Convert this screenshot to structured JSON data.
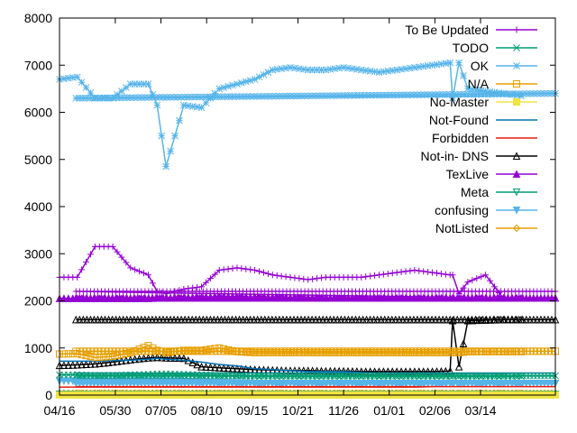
{
  "chart_data": {
    "type": "line",
    "title": "",
    "xlabel": "",
    "ylabel": "",
    "ylim": [
      0,
      8000
    ],
    "xlim": [
      "04/16",
      "05/12"
    ],
    "grid": false,
    "legend_position": "top-right",
    "x_ticks": [
      "04/16",
      "05/30",
      "07/05",
      "08/10",
      "09/15",
      "10/21",
      "11/26",
      "01/01",
      "02/06",
      "03/14"
    ],
    "y_ticks": [
      0,
      1000,
      2000,
      3000,
      4000,
      5000,
      6000,
      7000,
      8000
    ],
    "x_dates": [
      "04/16",
      "04/30",
      "05/14",
      "05/28",
      "06/11",
      "06/25",
      "07/02",
      "07/09",
      "07/23",
      "08/06",
      "08/20",
      "09/03",
      "09/17",
      "10/01",
      "10/15",
      "10/29",
      "11/12",
      "11/26",
      "12/10",
      "12/24",
      "01/07",
      "01/21",
      "02/04",
      "02/18",
      "02/20",
      "02/25",
      "03/04",
      "03/18",
      "04/01",
      "04/15",
      "04/29",
      "05/12"
    ],
    "series": [
      {
        "name": "To Be Updated",
        "color": "#9400d3",
        "marker": "plus",
        "values": [
          2500,
          2500,
          3150,
          3150,
          2700,
          2550,
          2200,
          2150,
          2250,
          2300,
          2650,
          2700,
          2650,
          2550,
          2500,
          2450,
          2500,
          2500,
          2500,
          2550,
          2600,
          2650,
          2600,
          2550,
          2550,
          2150,
          2400,
          2550,
          2050,
          2050,
          2200,
          2200
        ]
      },
      {
        "name": "TODO",
        "color": "#009e73",
        "marker": "cross",
        "values": [
          430,
          430,
          420,
          420,
          430,
          440,
          450,
          450,
          440,
          430,
          420,
          410,
          400,
          400,
          400,
          400,
          400,
          400,
          400,
          400,
          400,
          400,
          400,
          400,
          400,
          400,
          400,
          400,
          400,
          400,
          410,
          410
        ]
      },
      {
        "name": "OK",
        "color": "#56b4e9",
        "marker": "star",
        "values": [
          6700,
          6750,
          6300,
          6300,
          6600,
          6600,
          6150,
          4850,
          6150,
          6100,
          6500,
          6600,
          6700,
          6900,
          6950,
          6900,
          6900,
          6950,
          6900,
          6850,
          6900,
          6950,
          7000,
          7050,
          6300,
          7050,
          6500,
          6450,
          6400,
          6350,
          6300,
          6400
        ]
      },
      {
        "name": "N/A",
        "color": "#e69f00",
        "marker": "square",
        "values": [
          870,
          880,
          800,
          820,
          900,
          1050,
          950,
          900,
          950,
          950,
          1000,
          920,
          900,
          900,
          900,
          900,
          900,
          900,
          900,
          900,
          900,
          900,
          900,
          900,
          900,
          900,
          920,
          920,
          920,
          920,
          930,
          930
        ]
      },
      {
        "name": "No-Master",
        "color": "#f0e442",
        "marker": "filled-square",
        "values": [
          5,
          5,
          5,
          5,
          5,
          5,
          5,
          5,
          5,
          5,
          5,
          5,
          5,
          5,
          5,
          5,
          5,
          5,
          5,
          5,
          5,
          5,
          5,
          5,
          5,
          5,
          5,
          5,
          5,
          5,
          5,
          5
        ]
      },
      {
        "name": "Not-Found",
        "color": "#0072b2",
        "marker": "circle",
        "values": [
          720,
          720,
          720,
          730,
          740,
          760,
          780,
          760,
          740,
          700,
          650,
          620,
          560,
          540,
          520,
          500,
          500,
          500,
          480,
          470,
          460,
          460,
          460,
          460,
          460,
          460,
          460,
          460,
          460,
          470,
          470,
          470
        ]
      },
      {
        "name": "Forbidden",
        "color": "#e51e10",
        "marker": "filled-circle",
        "values": [
          170,
          170,
          170,
          170,
          170,
          170,
          170,
          170,
          170,
          170,
          170,
          170,
          170,
          170,
          170,
          170,
          170,
          170,
          170,
          170,
          170,
          170,
          180,
          180,
          180,
          180,
          180,
          180,
          180,
          180,
          180,
          180
        ]
      },
      {
        "name": "Not-in- DNS",
        "color": "#000000",
        "marker": "triangle",
        "values": [
          630,
          640,
          660,
          700,
          750,
          790,
          800,
          790,
          780,
          600,
          580,
          560,
          540,
          530,
          520,
          520,
          510,
          510,
          500,
          500,
          500,
          500,
          500,
          510,
          1580,
          600,
          1580,
          1590,
          1600,
          1600,
          1600,
          1600
        ]
      },
      {
        "name": "TexLive",
        "color": "#9400d3",
        "marker": "filled-triangle",
        "values": [
          2050,
          2050,
          2050,
          2050,
          2050,
          2050,
          2060,
          2060,
          2070,
          2080,
          2090,
          2090,
          2080,
          2080,
          2070,
          2070,
          2060,
          2060,
          2060,
          2060,
          2060,
          2060,
          2060,
          2060,
          2060,
          2060,
          2060,
          2060,
          2060,
          2060,
          2060,
          2060
        ]
      },
      {
        "name": "Meta",
        "color": "#009e73",
        "marker": "inverted-triangle",
        "values": [
          20,
          20,
          20,
          20,
          20,
          20,
          20,
          20,
          20,
          20,
          20,
          20,
          20,
          20,
          20,
          20,
          20,
          20,
          20,
          20,
          20,
          20,
          20,
          20,
          20,
          20,
          20,
          20,
          20,
          20,
          20,
          20
        ]
      },
      {
        "name": "confusing",
        "color": "#56b4e9",
        "marker": "filled-inverted-triangle",
        "values": [
          300,
          300,
          300,
          300,
          300,
          300,
          300,
          300,
          290,
          280,
          270,
          260,
          250,
          250,
          250,
          250,
          250,
          250,
          250,
          250,
          250,
          250,
          250,
          250,
          250,
          250,
          250,
          250,
          250,
          250,
          250,
          250
        ]
      },
      {
        "name": "NotListed",
        "color": "#e69f00",
        "marker": "diamond",
        "values": [
          40,
          40,
          40,
          40,
          40,
          40,
          40,
          40,
          40,
          40,
          40,
          40,
          40,
          40,
          40,
          40,
          40,
          40,
          40,
          40,
          40,
          40,
          40,
          40,
          40,
          40,
          40,
          40,
          40,
          40,
          40,
          40
        ]
      }
    ]
  }
}
